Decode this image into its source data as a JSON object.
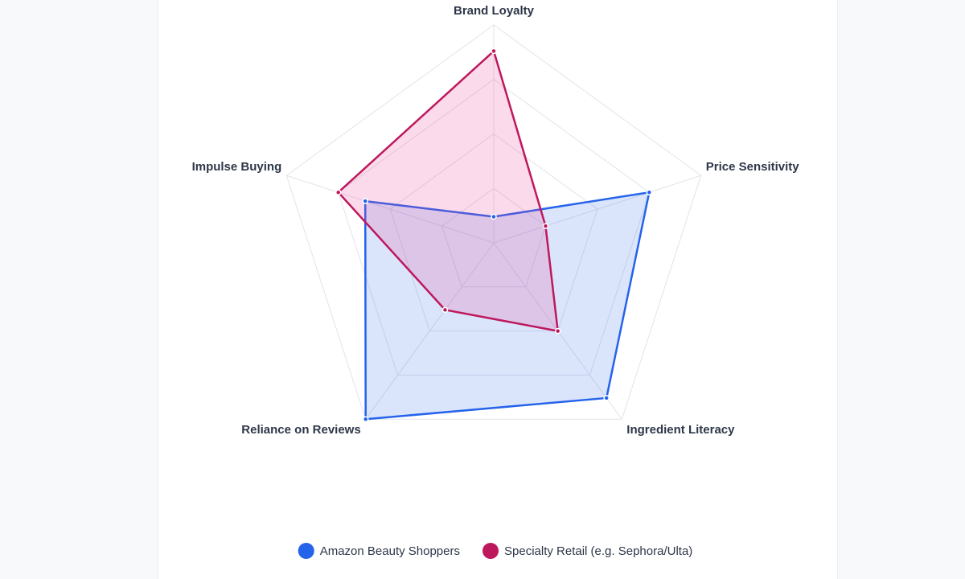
{
  "chart_data": {
    "type": "radar",
    "categories": [
      "Brand Loyalty",
      "Price Sensitivity",
      "Ingredient Literacy",
      "Reliance on Reviews",
      "Impulse Buying"
    ],
    "rlim": [
      0,
      100
    ],
    "rticks": [
      25,
      50,
      75,
      100
    ],
    "grid": true,
    "legend": "bottom",
    "series": [
      {
        "name": "Amazon Beauty Shoppers",
        "color": "#2563eb",
        "values": [
          12,
          75,
          88,
          100,
          62
        ]
      },
      {
        "name": "Specialty Retail (e.g. Sephora/Ulta)",
        "color": "#be185d",
        "values": [
          88,
          25,
          50,
          38,
          75
        ]
      }
    ]
  }
}
